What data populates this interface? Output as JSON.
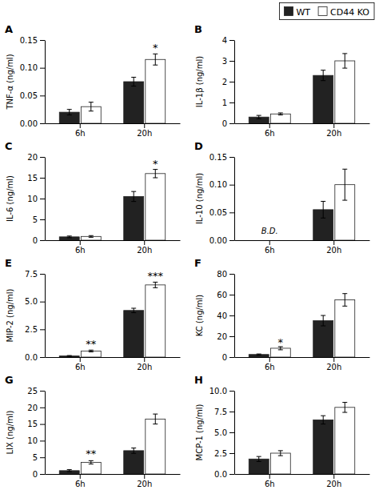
{
  "chart_data": [
    {
      "type": "bar",
      "title": "A",
      "ylabel": "TNF-α (ng/ml)",
      "categories": [
        "6h",
        "20h"
      ],
      "series": [
        {
          "name": "WT",
          "color": "#222222",
          "values": [
            0.02,
            0.075
          ],
          "errors": [
            0.005,
            0.008
          ]
        },
        {
          "name": "CD44 KO",
          "color": "#ffffff",
          "values": [
            0.03,
            0.115
          ],
          "errors": [
            0.008,
            0.01
          ]
        }
      ],
      "ylim": [
        0,
        0.15
      ],
      "yticks": [
        {
          "value": 0.0,
          "label": "0.00"
        },
        0.05,
        {
          "value": 0.1,
          "label": "0.10"
        },
        0.15
      ],
      "annotations": [
        {
          "text": "*",
          "category": "20h",
          "series": "CD44 KO",
          "y": 0.13
        }
      ]
    },
    {
      "type": "bar",
      "title": "B",
      "ylabel": "IL-1β (ng/ml)",
      "categories": [
        "6h",
        "20h"
      ],
      "series": [
        {
          "name": "WT",
          "color": "#222222",
          "values": [
            0.3,
            2.3
          ],
          "errors": [
            0.08,
            0.25
          ]
        },
        {
          "name": "CD44 KO",
          "color": "#ffffff",
          "values": [
            0.45,
            3.0
          ],
          "errors": [
            0.05,
            0.35
          ]
        }
      ],
      "ylim": [
        0,
        4
      ],
      "yticks": [
        0,
        1,
        2,
        3,
        4
      ],
      "legend": "upper right"
    },
    {
      "type": "bar",
      "title": "C",
      "ylabel": "IL-6 (ng/ml)",
      "categories": [
        "6h",
        "20h"
      ],
      "series": [
        {
          "name": "WT",
          "color": "#222222",
          "values": [
            0.8,
            10.5
          ],
          "errors": [
            0.2,
            1.2
          ]
        },
        {
          "name": "CD44 KO",
          "color": "#ffffff",
          "values": [
            0.9,
            16.0
          ],
          "errors": [
            0.2,
            1.0
          ]
        }
      ],
      "ylim": [
        0,
        20
      ],
      "yticks": [
        0,
        5,
        10,
        15,
        20
      ],
      "annotations": [
        {
          "text": "*",
          "category": "20h",
          "series": "CD44 KO",
          "y": 17.5
        }
      ]
    },
    {
      "type": "bar",
      "title": "D",
      "ylabel": "IL-10 (ng/ml)",
      "categories": [
        "6h",
        "20h"
      ],
      "series": [
        {
          "name": "WT",
          "color": "#222222",
          "values": [
            0.0,
            0.055
          ],
          "errors": [
            0.0,
            0.015
          ]
        },
        {
          "name": "CD44 KO",
          "color": "#ffffff",
          "values": [
            0.0,
            0.1
          ],
          "errors": [
            0.0,
            0.028
          ]
        }
      ],
      "ylim": [
        0,
        0.15
      ],
      "yticks": [
        {
          "value": 0.0,
          "label": "0.00"
        },
        0.05,
        {
          "value": 0.1,
          "label": "0.10"
        },
        0.15
      ],
      "annotations": [
        {
          "text": "B.D.",
          "category": "6h"
        }
      ]
    },
    {
      "type": "bar",
      "title": "E",
      "ylabel": "MIP-2 (ng/ml)",
      "categories": [
        "6h",
        "20h"
      ],
      "series": [
        {
          "name": "WT",
          "color": "#222222",
          "values": [
            0.1,
            4.2
          ],
          "errors": [
            0.04,
            0.2
          ]
        },
        {
          "name": "CD44 KO",
          "color": "#ffffff",
          "values": [
            0.55,
            6.5
          ],
          "errors": [
            0.08,
            0.25
          ]
        }
      ],
      "ylim": [
        0,
        7.5
      ],
      "yticks": [
        {
          "value": 0.0,
          "label": "0.0"
        },
        2.5,
        {
          "value": 5.0,
          "label": "5.0"
        },
        7.5
      ],
      "annotations": [
        {
          "text": "**",
          "category": "6h",
          "series": "CD44 KO",
          "y": 0.85
        },
        {
          "text": "***",
          "category": "20h",
          "series": "CD44 KO",
          "y": 7.0
        }
      ]
    },
    {
      "type": "bar",
      "title": "F",
      "ylabel": "KC (ng/ml)",
      "categories": [
        "6h",
        "20h"
      ],
      "series": [
        {
          "name": "WT",
          "color": "#222222",
          "values": [
            2.5,
            35.0
          ],
          "errors": [
            0.5,
            5.0
          ]
        },
        {
          "name": "CD44 KO",
          "color": "#ffffff",
          "values": [
            8.5,
            55.0
          ],
          "errors": [
            1.5,
            6.0
          ]
        }
      ],
      "ylim": [
        0,
        80
      ],
      "yticks": [
        0,
        20,
        40,
        60,
        80
      ],
      "annotations": [
        {
          "text": "*",
          "category": "6h",
          "series": "CD44 KO",
          "y": 11.0
        }
      ]
    },
    {
      "type": "bar",
      "title": "G",
      "ylabel": "LIX (ng/ml)",
      "categories": [
        "6h",
        "20h"
      ],
      "series": [
        {
          "name": "WT",
          "color": "#222222",
          "values": [
            1.0,
            7.0
          ],
          "errors": [
            0.3,
            0.8
          ]
        },
        {
          "name": "CD44 KO",
          "color": "#ffffff",
          "values": [
            3.5,
            16.5
          ],
          "errors": [
            0.5,
            1.5
          ]
        }
      ],
      "ylim": [
        0,
        25
      ],
      "yticks": [
        0,
        5,
        10,
        15,
        20,
        25
      ],
      "annotations": [
        {
          "text": "**",
          "category": "6h",
          "series": "CD44 KO",
          "y": 5.0
        }
      ]
    },
    {
      "type": "bar",
      "title": "H",
      "ylabel": "MCP-1 (ng/ml)",
      "categories": [
        "6h",
        "20h"
      ],
      "series": [
        {
          "name": "WT",
          "color": "#222222",
          "values": [
            1.8,
            6.5
          ],
          "errors": [
            0.3,
            0.5
          ]
        },
        {
          "name": "CD44 KO",
          "color": "#ffffff",
          "values": [
            2.5,
            8.0
          ],
          "errors": [
            0.3,
            0.6
          ]
        }
      ],
      "ylim": [
        0,
        10.0
      ],
      "yticks": [
        {
          "value": 0.0,
          "label": "0.0"
        },
        2.5,
        {
          "value": 5.0,
          "label": "5.0"
        },
        7.5,
        {
          "value": 10.0,
          "label": "10.0"
        }
      ]
    }
  ]
}
